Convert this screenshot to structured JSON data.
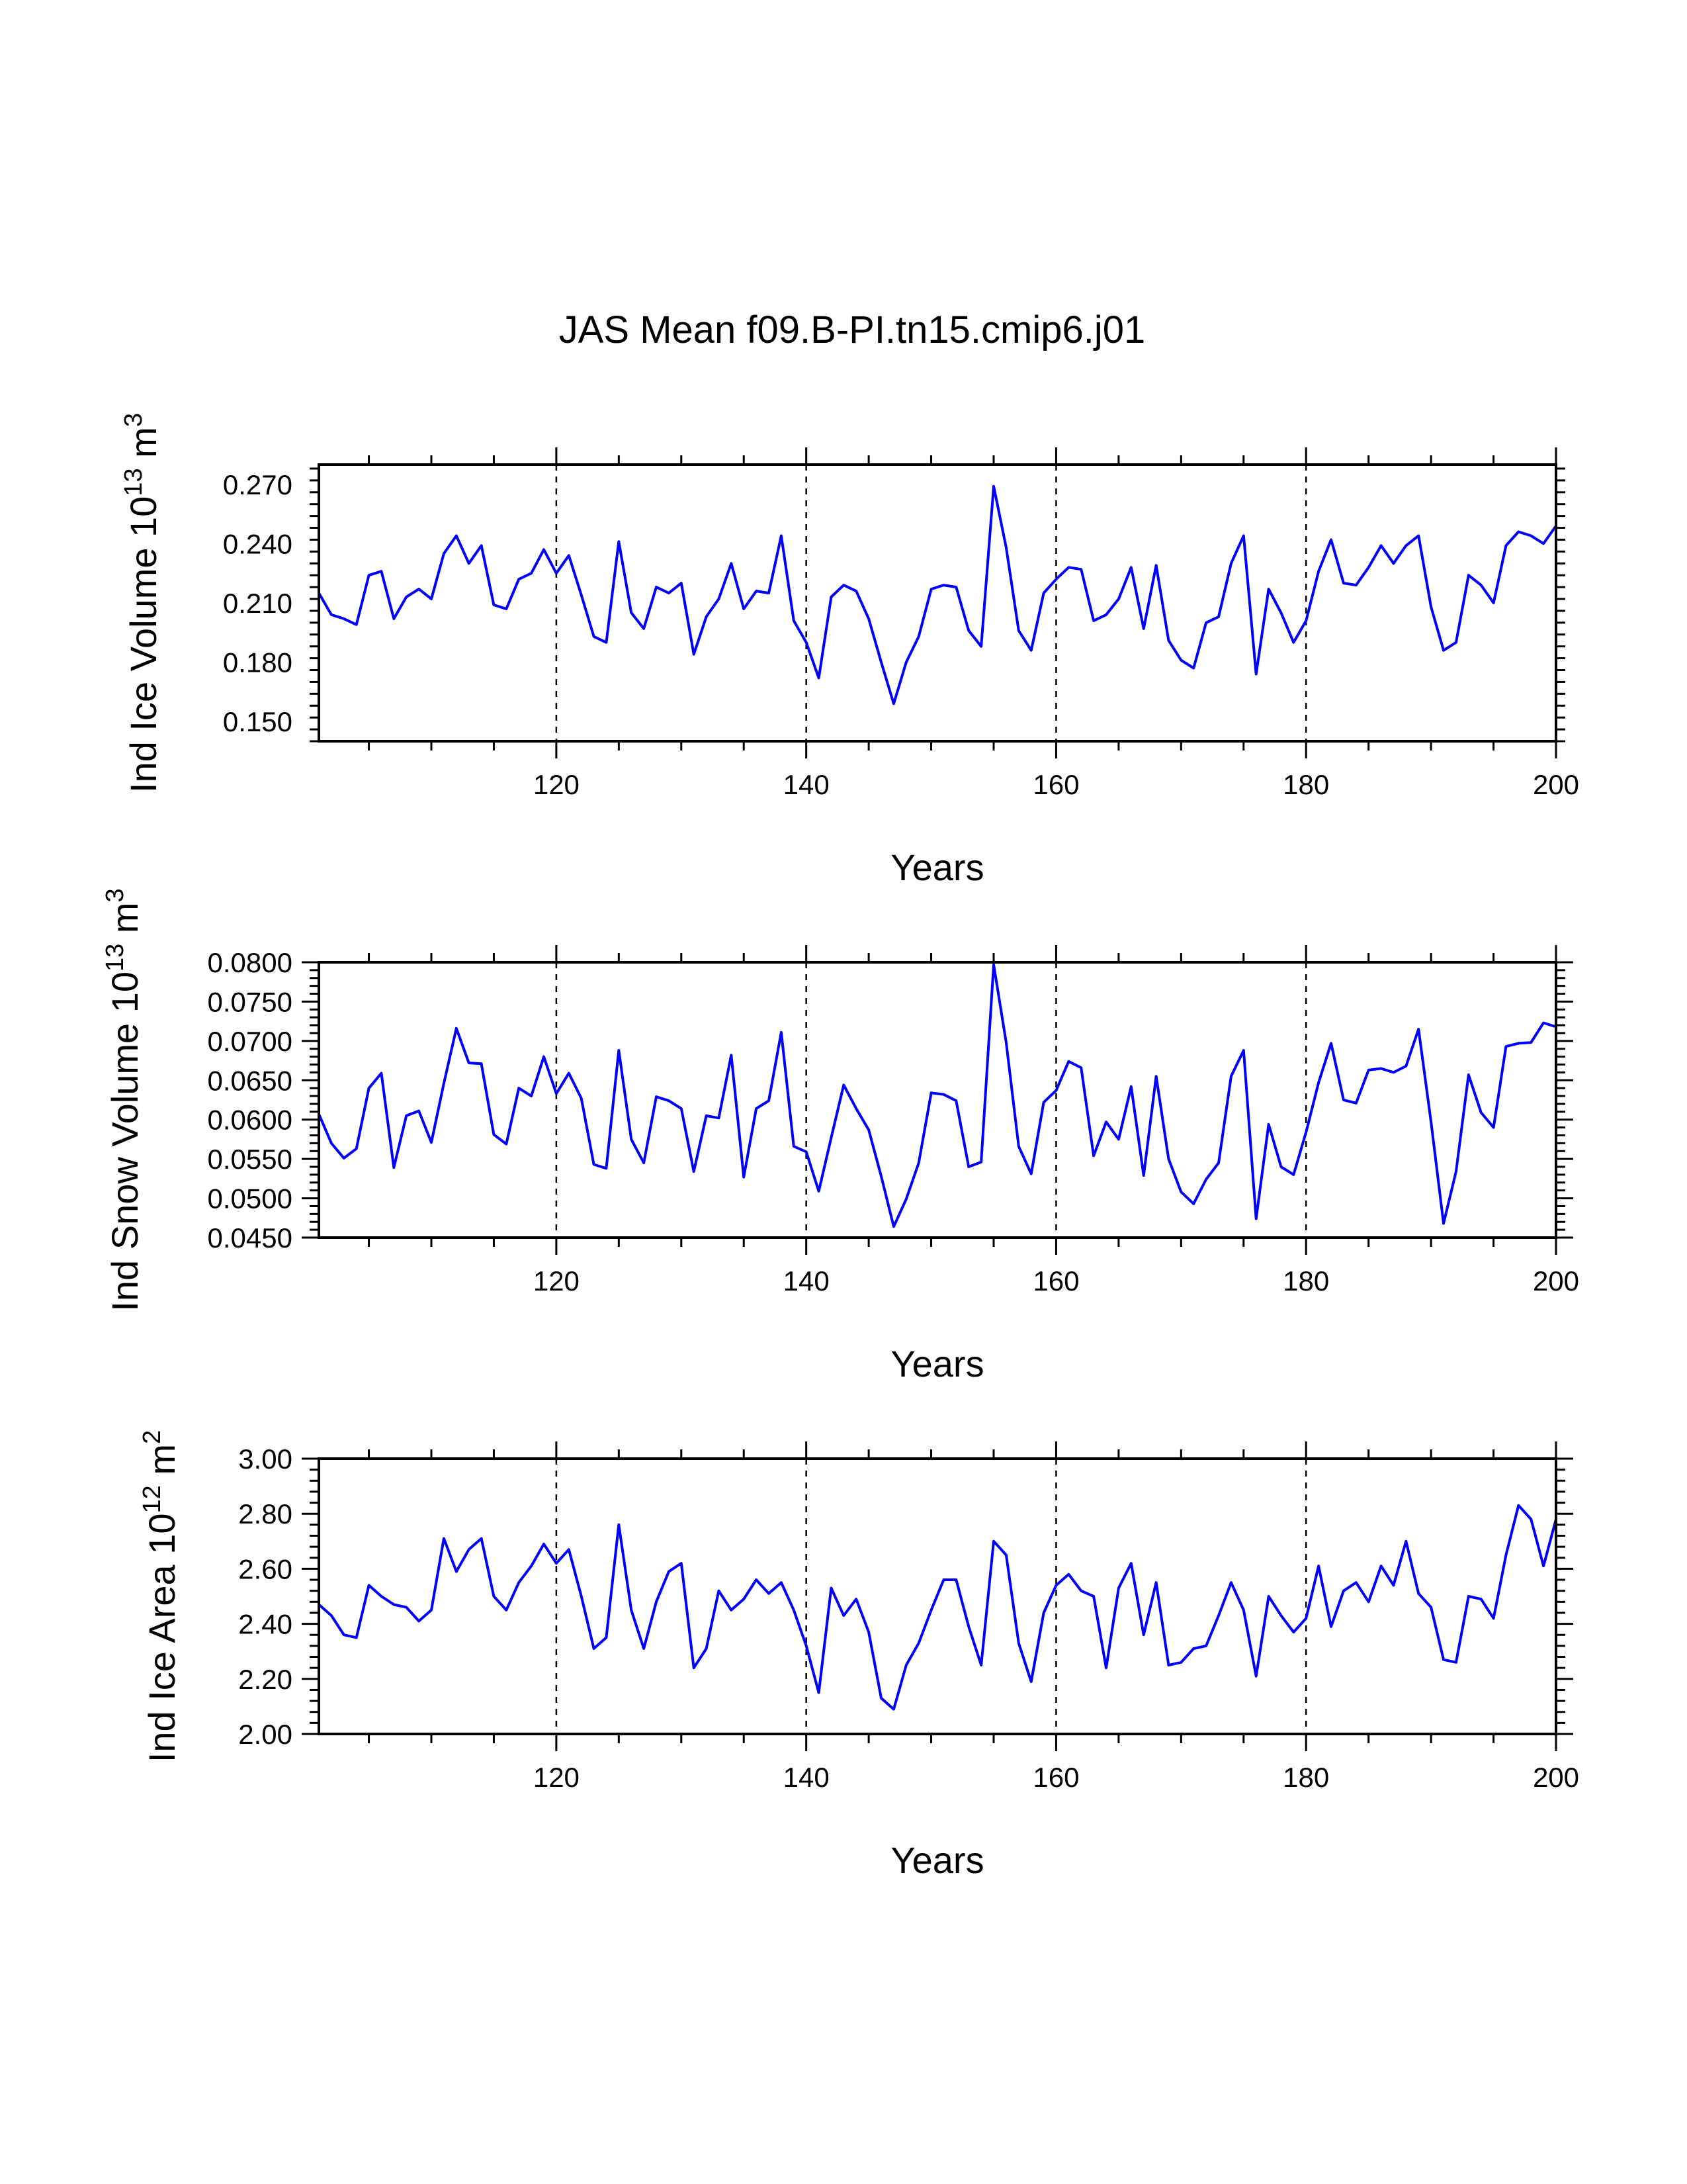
{
  "figure_title": "JAS Mean f09.B-PI.tn15.cmip6.j01",
  "chart_data": [
    {
      "type": "line",
      "title": "",
      "xlabel": "Years",
      "ylabel": "Ind Ice Volume 10",
      "ylabel_exp": "13",
      "ylabel_unit": " m",
      "ylabel_unit_exp": "3",
      "xlim": [
        101,
        200
      ],
      "ylim": [
        0.14,
        0.28
      ],
      "x_ticks": [
        120,
        140,
        160,
        180,
        200
      ],
      "y_ticks": [
        "0.150",
        "0.180",
        "0.210",
        "0.240",
        "0.270"
      ],
      "grid_x_dashed": [
        120,
        140,
        160,
        180
      ],
      "series": [
        {
          "name": "Ind Ice Volume",
          "color": "#0000ff",
          "x_start": 101,
          "values": [
            0.215,
            0.204,
            0.202,
            0.199,
            0.224,
            0.226,
            0.202,
            0.213,
            0.217,
            0.212,
            0.235,
            0.244,
            0.23,
            0.239,
            0.209,
            0.207,
            0.222,
            0.225,
            0.237,
            0.225,
            0.234,
            0.214,
            0.193,
            0.19,
            0.241,
            0.205,
            0.197,
            0.218,
            0.215,
            0.22,
            0.184,
            0.203,
            0.212,
            0.23,
            0.207,
            0.216,
            0.215,
            0.244,
            0.201,
            0.19,
            0.172,
            0.213,
            0.219,
            0.216,
            0.202,
            0.18,
            0.159,
            0.18,
            0.193,
            0.217,
            0.219,
            0.218,
            0.196,
            0.188,
            0.269,
            0.238,
            0.196,
            0.186,
            0.215,
            0.222,
            0.228,
            0.227,
            0.201,
            0.204,
            0.212,
            0.228,
            0.197,
            0.229,
            0.191,
            0.181,
            0.177,
            0.2,
            0.203,
            0.23,
            0.244,
            0.174,
            0.217,
            0.205,
            0.19,
            0.201,
            0.226,
            0.242,
            0.22,
            0.219,
            0.228,
            0.239,
            0.23,
            0.239,
            0.244,
            0.208,
            0.186,
            0.19,
            0.224,
            0.219,
            0.21,
            0.239,
            0.246,
            0.244,
            0.24,
            0.249
          ]
        }
      ]
    },
    {
      "type": "line",
      "title": "",
      "xlabel": "Years",
      "ylabel": "Ind Snow Volume 10",
      "ylabel_exp": "13",
      "ylabel_unit": " m",
      "ylabel_unit_exp": "3",
      "xlim": [
        101,
        200
      ],
      "ylim": [
        0.045,
        0.08
      ],
      "x_ticks": [
        120,
        140,
        160,
        180,
        200
      ],
      "y_ticks": [
        "0.0450",
        "0.0500",
        "0.0550",
        "0.0600",
        "0.0650",
        "0.0700",
        "0.0750",
        "0.0800"
      ],
      "grid_x_dashed": [
        120,
        140,
        160,
        180
      ],
      "series": [
        {
          "name": "Ind Snow Volume",
          "color": "#0000ff",
          "x_start": 101,
          "values": [
            0.0607,
            0.057,
            0.0551,
            0.0563,
            0.064,
            0.0659,
            0.0539,
            0.0605,
            0.0611,
            0.0571,
            0.0646,
            0.0716,
            0.0672,
            0.0671,
            0.0581,
            0.0569,
            0.064,
            0.063,
            0.068,
            0.0633,
            0.0659,
            0.0627,
            0.0543,
            0.0538,
            0.0688,
            0.0575,
            0.0545,
            0.0629,
            0.0624,
            0.0614,
            0.0534,
            0.0605,
            0.0602,
            0.0682,
            0.0527,
            0.0614,
            0.0624,
            0.0711,
            0.0566,
            0.0559,
            0.0509,
            0.0577,
            0.0644,
            0.0614,
            0.0587,
            0.0528,
            0.0464,
            0.0499,
            0.0545,
            0.0634,
            0.0632,
            0.0624,
            0.054,
            0.0546,
            0.0797,
            0.0698,
            0.0566,
            0.0531,
            0.0622,
            0.0637,
            0.0674,
            0.0666,
            0.0554,
            0.0597,
            0.0575,
            0.0642,
            0.0529,
            0.0655,
            0.055,
            0.0508,
            0.0493,
            0.0524,
            0.0545,
            0.0655,
            0.0688,
            0.0474,
            0.0594,
            0.054,
            0.053,
            0.0584,
            0.0647,
            0.0697,
            0.0625,
            0.0621,
            0.0663,
            0.0665,
            0.066,
            0.0668,
            0.0715,
            0.0597,
            0.0468,
            0.0534,
            0.0657,
            0.0609,
            0.059,
            0.0693,
            0.0697,
            0.0698,
            0.0723,
            0.0718
          ]
        }
      ]
    },
    {
      "type": "line",
      "title": "",
      "xlabel": "Years",
      "ylabel": "Ind Ice Area 10",
      "ylabel_exp": "12",
      "ylabel_unit": " m",
      "ylabel_unit_exp": "2",
      "xlim": [
        101,
        200
      ],
      "ylim": [
        2.0,
        3.0
      ],
      "x_ticks": [
        120,
        140,
        160,
        180,
        200
      ],
      "y_ticks": [
        "2.00",
        "2.20",
        "2.40",
        "2.60",
        "2.80",
        "3.00"
      ],
      "grid_x_dashed": [
        120,
        140,
        160,
        180
      ],
      "series": [
        {
          "name": "Ind Ice Area",
          "color": "#0000ff",
          "x_start": 101,
          "values": [
            2.47,
            2.43,
            2.36,
            2.35,
            2.54,
            2.5,
            2.47,
            2.46,
            2.41,
            2.45,
            2.71,
            2.59,
            2.67,
            2.71,
            2.5,
            2.45,
            2.55,
            2.61,
            2.69,
            2.62,
            2.67,
            2.5,
            2.31,
            2.35,
            2.76,
            2.45,
            2.31,
            2.48,
            2.59,
            2.62,
            2.24,
            2.31,
            2.52,
            2.45,
            2.49,
            2.56,
            2.51,
            2.55,
            2.45,
            2.32,
            2.15,
            2.53,
            2.43,
            2.49,
            2.37,
            2.13,
            2.09,
            2.25,
            2.33,
            2.45,
            2.56,
            2.56,
            2.39,
            2.25,
            2.7,
            2.65,
            2.33,
            2.19,
            2.44,
            2.54,
            2.58,
            2.52,
            2.5,
            2.24,
            2.53,
            2.62,
            2.36,
            2.55,
            2.25,
            2.26,
            2.31,
            2.32,
            2.43,
            2.55,
            2.45,
            2.21,
            2.5,
            2.43,
            2.37,
            2.42,
            2.61,
            2.39,
            2.52,
            2.55,
            2.48,
            2.61,
            2.54,
            2.7,
            2.51,
            2.46,
            2.27,
            2.26,
            2.5,
            2.49,
            2.42,
            2.65,
            2.83,
            2.78,
            2.61,
            2.78
          ]
        }
      ]
    }
  ]
}
